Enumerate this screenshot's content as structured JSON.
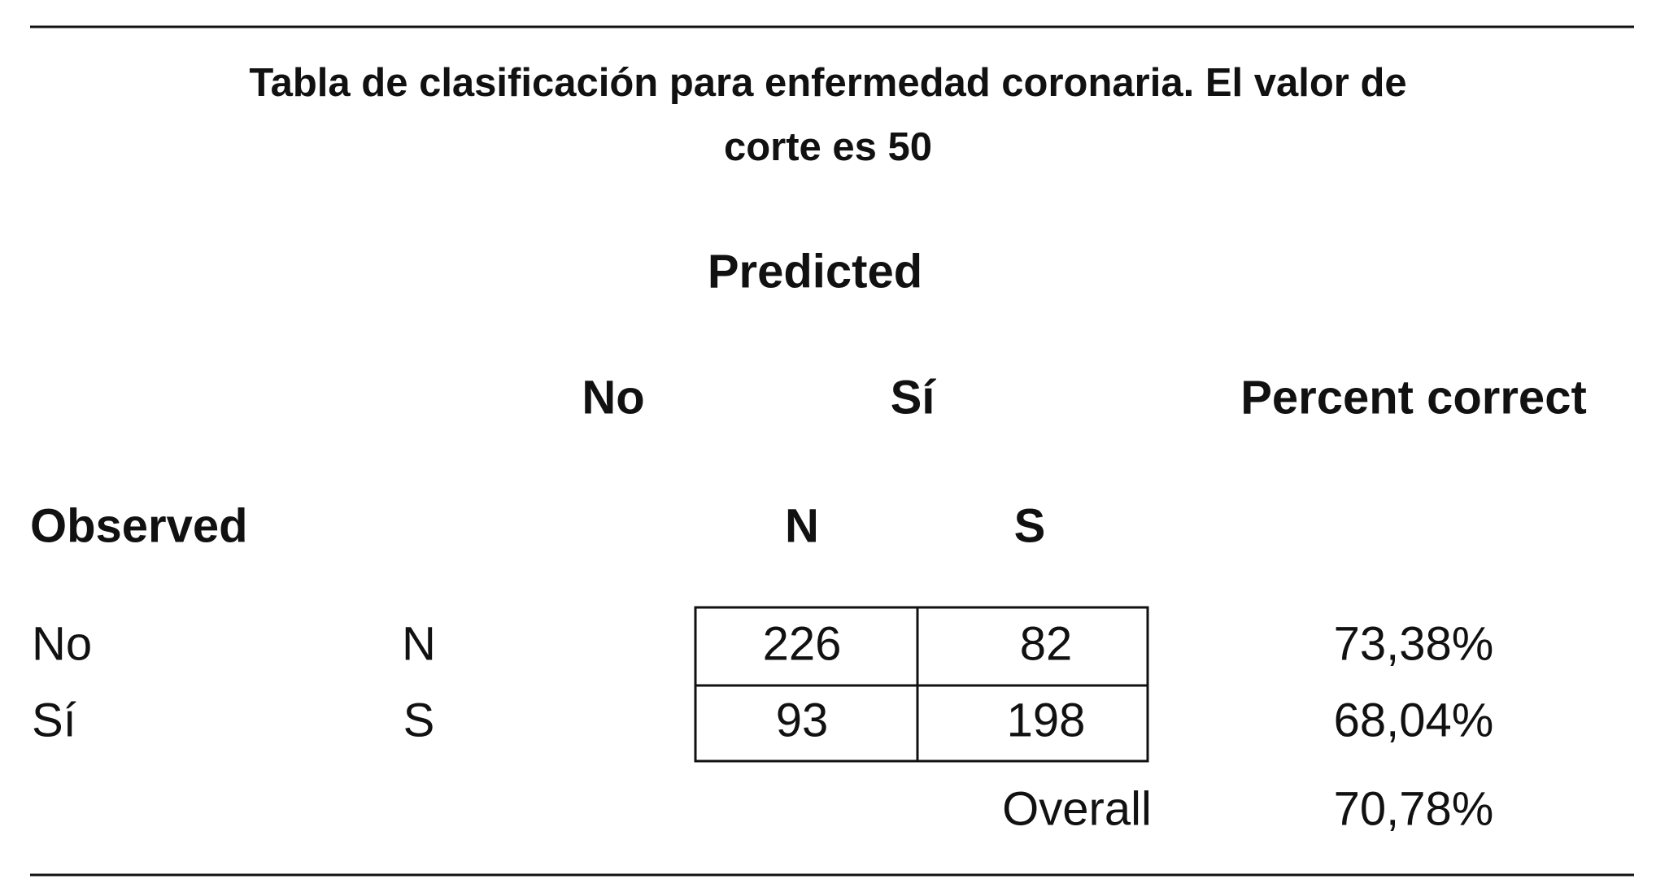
{
  "title": "Tabla de clasificación para enfermedad coronaria. El valor de corte es 50",
  "header": {
    "predicted": "Predicted",
    "no": "No",
    "si": "Sí",
    "percent_correct": "Percent correct",
    "observed": "Observed",
    "n": "N",
    "s": "S"
  },
  "table": {
    "rows": [
      [
        "No",
        "N",
        226,
        82,
        "73,38%"
      ],
      [
        "Sí",
        "S",
        93,
        198,
        "68,04%"
      ]
    ]
  },
  "overall": {
    "label": "Overall",
    "value": "70,78%"
  }
}
